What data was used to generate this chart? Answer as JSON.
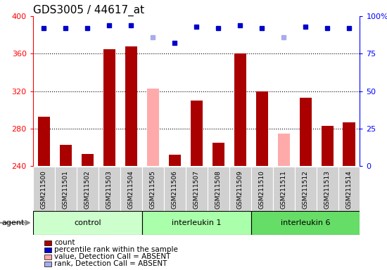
{
  "title": "GDS3005 / 44617_at",
  "samples": [
    "GSM211500",
    "GSM211501",
    "GSM211502",
    "GSM211503",
    "GSM211504",
    "GSM211505",
    "GSM211506",
    "GSM211507",
    "GSM211508",
    "GSM211509",
    "GSM211510",
    "GSM211511",
    "GSM211512",
    "GSM211513",
    "GSM211514"
  ],
  "bar_values": [
    293,
    263,
    253,
    365,
    368,
    323,
    252,
    310,
    265,
    360,
    320,
    275,
    313,
    283,
    287
  ],
  "bar_absent": [
    false,
    false,
    false,
    false,
    false,
    true,
    false,
    false,
    false,
    false,
    false,
    true,
    false,
    false,
    false
  ],
  "bar_color_present": "#aa0000",
  "bar_color_absent": "#ffaaaa",
  "rank_values_pct": [
    92,
    92,
    92,
    94,
    94,
    86,
    82,
    93,
    92,
    94,
    92,
    86,
    93,
    92,
    92
  ],
  "rank_absent": [
    false,
    false,
    false,
    false,
    false,
    true,
    false,
    false,
    false,
    false,
    false,
    true,
    false,
    false,
    false
  ],
  "rank_color_present": "#0000cc",
  "rank_color_absent": "#aaaaee",
  "groups": [
    {
      "label": "control",
      "start": 0,
      "end": 4,
      "color": "#ccffcc"
    },
    {
      "label": "interleukin 1",
      "start": 5,
      "end": 9,
      "color": "#aaffaa"
    },
    {
      "label": "interleukin 6",
      "start": 10,
      "end": 14,
      "color": "#66dd66"
    }
  ],
  "ylim_left": [
    240,
    400
  ],
  "ylim_right": [
    0,
    100
  ],
  "yticks_left": [
    240,
    280,
    320,
    360,
    400
  ],
  "yticks_right": [
    0,
    25,
    50,
    75,
    100
  ],
  "background_color": "#ffffff",
  "plot_bg_color": "#ffffff",
  "title_fontsize": 11,
  "bar_width": 0.55,
  "legend_items": [
    {
      "label": "count",
      "color": "#aa0000"
    },
    {
      "label": "percentile rank within the sample",
      "color": "#0000cc"
    },
    {
      "label": "value, Detection Call = ABSENT",
      "color": "#ffaaaa"
    },
    {
      "label": "rank, Detection Call = ABSENT",
      "color": "#aaaaee"
    }
  ]
}
